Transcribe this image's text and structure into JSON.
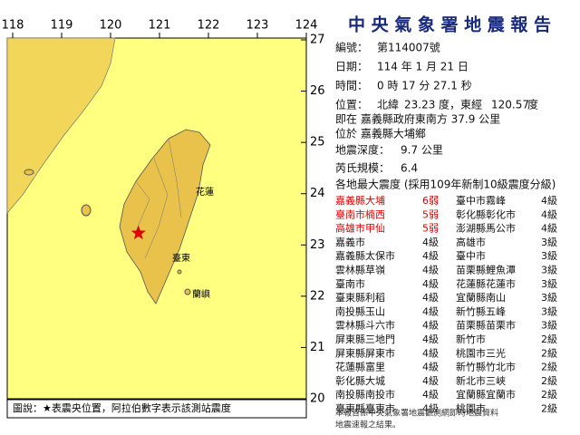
{
  "map": {
    "lon_ticks": [
      118,
      119,
      120,
      121,
      122,
      123,
      124
    ],
    "lat_ticks": [
      27,
      26,
      25,
      24,
      23,
      22,
      21,
      20
    ],
    "labels": [
      "花蓮",
      "臺東",
      "蘭嶼"
    ],
    "legend": "圖說：★表震央位置，阿拉伯數字表示該測站震度"
  },
  "report": {
    "title": "中 央 氣 象 署 地 震 報 告",
    "number": {
      "label": "編號：",
      "value": "第114007號"
    },
    "date": {
      "label": "日期：",
      "value": "114 年 1 月 21 日"
    },
    "time": {
      "label": "時間：",
      "value": "0 時 17 分 27.1 秒"
    },
    "location": {
      "label": "位置：",
      "lat_text": "北緯",
      "lat": 23.23,
      "lat_unit": "度，東經",
      "lon": 120.57,
      "lon_unit": "度"
    },
    "relative": "即在 嘉義縣政府東南方 37.9 公里",
    "town": "位於 嘉義縣大埔鄉",
    "depth": {
      "label": "地震深度：",
      "value": "9.7 公里"
    },
    "magnitude": {
      "label": "芮氏規模：",
      "value": "6.4"
    },
    "intensity_title": "各地最大震度 (採用109年新制10級震度分級)",
    "rows": [
      [
        "嘉義縣大埔",
        "6弱",
        "臺中市霧峰",
        "4級"
      ],
      [
        "臺南市楠西",
        "5弱",
        "彰化縣彰化市",
        "4級"
      ],
      [
        "高雄市甲仙",
        "5弱",
        "澎湖縣馬公市",
        "4級"
      ],
      [
        "嘉義市",
        "4級",
        "高雄市",
        "3級"
      ],
      [
        "嘉義縣太保市",
        "4級",
        "臺中市",
        "3級"
      ],
      [
        "雲林縣草嶺",
        "4級",
        "苗栗縣鯉魚潭",
        "3級"
      ],
      [
        "臺南市",
        "4級",
        "花蓮縣花蓮市",
        "3級"
      ],
      [
        "臺東縣利稻",
        "4級",
        "宜蘭縣南山",
        "3級"
      ],
      [
        "南投縣玉山",
        "4級",
        "新竹縣五峰",
        "3級"
      ],
      [
        "雲林縣斗六市",
        "4級",
        "苗栗縣苗栗市",
        "3級"
      ],
      [
        "屏東縣三地門",
        "4級",
        "新竹市",
        "2級"
      ],
      [
        "屏東縣屏東市",
        "4級",
        "桃園市三光",
        "2級"
      ],
      [
        "花蓮縣富里",
        "4級",
        "新竹縣竹北市",
        "2級"
      ],
      [
        "彰化縣大城",
        "4級",
        "新北市三峽",
        "2級"
      ],
      [
        "南投縣南投市",
        "4級",
        "宜蘭縣宜蘭市",
        "2級"
      ],
      [
        "臺東縣臺東市",
        "4級",
        "桃園市",
        "2級"
      ]
    ],
    "footer": [
      "本報告係中央氣象署地震觀測網即時地震資料",
      "地震速報之結果。"
    ]
  }
}
